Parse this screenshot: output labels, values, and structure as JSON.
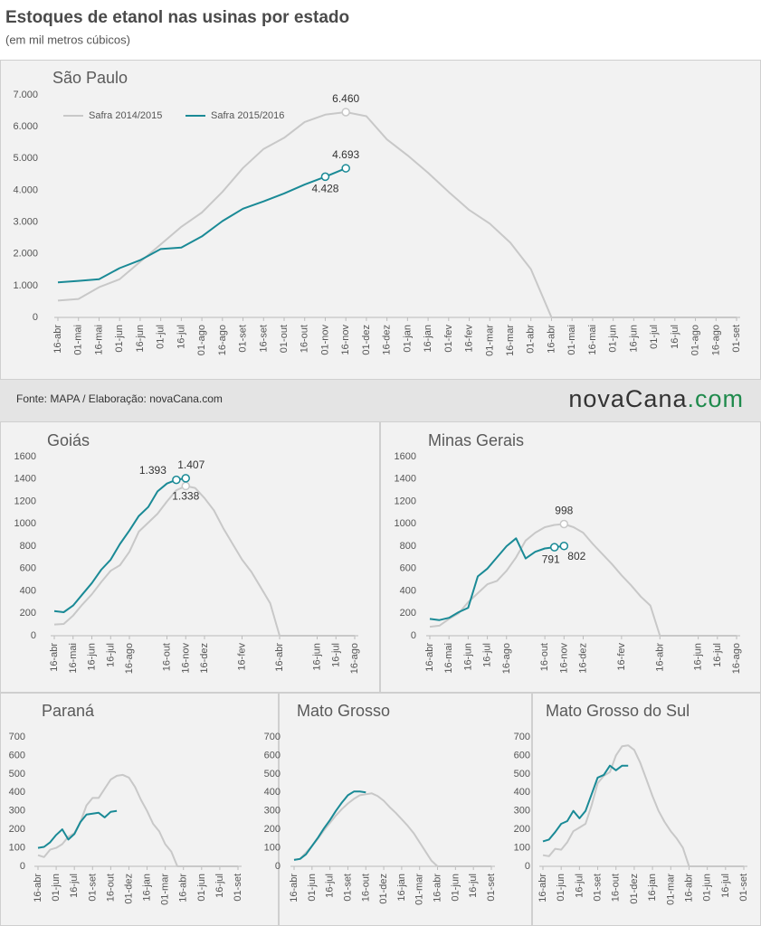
{
  "title": "Estoques de etanol nas usinas por estado",
  "subtitle": "(em mil metros cúbicos)",
  "source": "Fonte: MAPA / Elaboração: novaCana.com",
  "logo": [
    "novaCana",
    ".com"
  ],
  "chart_data": [
    {
      "type": "line",
      "title": "São Paulo",
      "categories": [
        "16-abr",
        "01-mai",
        "16-mai",
        "01-jun",
        "16-jun",
        "01-jul",
        "16-jul",
        "01-ago",
        "16-ago",
        "01-set",
        "16-set",
        "01-out",
        "16-out",
        "01-nov",
        "16-nov",
        "01-dez",
        "16-dez",
        "01-jan",
        "16-jan",
        "01-fev",
        "16-fev",
        "01-mar",
        "16-mar",
        "01-abr",
        "16-abr",
        "01-mai",
        "16-mai",
        "01-jun",
        "16-jun",
        "01-jul",
        "16-jul",
        "01-ago",
        "16-ago",
        "01-set"
      ],
      "series": [
        {
          "name": "Safra 2014/2015",
          "color": "#c8c8c8",
          "values": [
            530,
            580,
            950,
            1200,
            1750,
            2300,
            2850,
            3300,
            3950,
            4700,
            5300,
            5650,
            6150,
            6380,
            6460,
            6330,
            5600,
            5100,
            4550,
            3950,
            3380,
            2950,
            2350,
            1520,
            0,
            0,
            0,
            0,
            0,
            0,
            0,
            0,
            0,
            0
          ],
          "value_labels": [
            null,
            null,
            null,
            null,
            null,
            null,
            null,
            null,
            null,
            null,
            null,
            null,
            null,
            null,
            "6.460",
            null,
            null,
            null,
            null,
            null,
            null,
            null,
            null,
            null,
            null,
            null,
            null,
            null,
            null,
            null,
            null,
            null,
            null,
            null
          ]
        },
        {
          "name": "Safra 2015/2016",
          "color": "#1a8a96",
          "values": [
            1100,
            1150,
            1200,
            1550,
            1800,
            2150,
            2200,
            2550,
            3030,
            3420,
            3650,
            3900,
            4180,
            4428,
            4693,
            null,
            null,
            null,
            null,
            null,
            null,
            null,
            null,
            null,
            null,
            null,
            null,
            null,
            null,
            null,
            null,
            null,
            null,
            null
          ],
          "value_labels": [
            null,
            null,
            null,
            null,
            null,
            null,
            null,
            null,
            null,
            null,
            null,
            null,
            null,
            "4.428",
            "4.693",
            null,
            null,
            null,
            null,
            null,
            null,
            null,
            null,
            null,
            null,
            null,
            null,
            null,
            null,
            null,
            null,
            null,
            null,
            null
          ]
        }
      ],
      "ylim": [
        0,
        7000
      ],
      "yticks": [
        0,
        {
          "value": 1000,
          "label": "1.000"
        },
        {
          "value": 2000,
          "label": "2.000"
        },
        {
          "value": 3000,
          "label": "3.000"
        },
        {
          "value": 4000,
          "label": "4.000"
        },
        {
          "value": 5000,
          "label": "5.000"
        },
        {
          "value": 6000,
          "label": "6.000"
        },
        {
          "value": 7000,
          "label": "7.000"
        }
      ],
      "grid": false,
      "legend": "upper left"
    },
    {
      "type": "line",
      "title": "Goiás",
      "categories": [
        "16-abr",
        null,
        "16-mai",
        null,
        "16-jun",
        null,
        "16-jul",
        null,
        "16-ago",
        null,
        null,
        null,
        "16-out",
        null,
        "16-nov",
        null,
        "16-dez",
        null,
        null,
        null,
        "16-fev",
        null,
        null,
        null,
        "16-abr",
        null,
        null,
        null,
        "16-jun",
        null,
        "16-jul",
        null,
        "16-ago"
      ],
      "series": [
        {
          "color": "#c8c8c8",
          "values": [
            100,
            105,
            180,
            280,
            370,
            480,
            580,
            630,
            750,
            930,
            1010,
            1090,
            1200,
            1300,
            1338,
            1320,
            1230,
            1120,
            960,
            820,
            680,
            570,
            430,
            290,
            0,
            0,
            0,
            0,
            0,
            0,
            0,
            0,
            0
          ],
          "value_labels": [
            null,
            null,
            null,
            null,
            null,
            null,
            null,
            null,
            null,
            null,
            null,
            null,
            null,
            null,
            "1.338",
            null,
            null,
            null,
            null,
            null,
            null,
            null,
            null,
            null,
            null,
            null,
            null,
            null,
            null,
            null,
            null,
            null,
            null
          ]
        },
        {
          "color": "#1a8a96",
          "values": [
            220,
            210,
            270,
            370,
            470,
            590,
            680,
            820,
            940,
            1070,
            1150,
            1290,
            1360,
            1393,
            1407,
            null,
            null,
            null,
            null,
            null,
            null,
            null,
            null,
            null,
            null,
            null,
            null,
            null,
            null,
            null,
            null,
            null,
            null
          ],
          "value_labels": [
            null,
            null,
            null,
            null,
            null,
            null,
            null,
            null,
            null,
            null,
            null,
            null,
            null,
            "1.393",
            "1.407",
            null,
            null,
            null,
            null,
            null,
            null,
            null,
            null,
            null,
            null,
            null,
            null,
            null,
            null,
            null,
            null,
            null,
            null
          ]
        }
      ],
      "ylim": [
        0,
        1600
      ],
      "yticks": [
        0,
        200,
        400,
        600,
        800,
        1000,
        1200,
        1400,
        1600
      ],
      "grid": false
    },
    {
      "type": "line",
      "title": "Minas Gerais",
      "categories": [
        "16-abr",
        null,
        "16-mai",
        null,
        "16-jun",
        null,
        "16-jul",
        null,
        "16-ago",
        null,
        null,
        null,
        "16-out",
        null,
        "16-nov",
        null,
        "16-dez",
        null,
        null,
        null,
        "16-fev",
        null,
        null,
        null,
        "16-abr",
        null,
        null,
        null,
        "16-jun",
        null,
        "16-jul",
        null,
        "16-ago"
      ],
      "series": [
        {
          "color": "#c8c8c8",
          "values": [
            80,
            90,
            150,
            200,
            300,
            380,
            460,
            490,
            580,
            700,
            850,
            920,
            970,
            990,
            998,
            970,
            920,
            820,
            730,
            640,
            540,
            450,
            350,
            270,
            0,
            0,
            0,
            0,
            0,
            0,
            0,
            0,
            0
          ],
          "value_labels": [
            null,
            null,
            null,
            null,
            null,
            null,
            null,
            null,
            null,
            null,
            null,
            null,
            null,
            null,
            "998",
            null,
            null,
            null,
            null,
            null,
            null,
            null,
            null,
            null,
            null,
            null,
            null,
            null,
            null,
            null,
            null,
            null,
            null
          ]
        },
        {
          "color": "#1a8a96",
          "values": [
            150,
            140,
            160,
            210,
            250,
            530,
            600,
            700,
            800,
            870,
            690,
            750,
            780,
            791,
            802,
            null,
            null,
            null,
            null,
            null,
            null,
            null,
            null,
            null,
            null,
            null,
            null,
            null,
            null,
            null,
            null,
            null,
            null
          ],
          "value_labels": [
            null,
            null,
            null,
            null,
            null,
            null,
            null,
            null,
            null,
            null,
            null,
            null,
            null,
            "791",
            "802",
            null,
            null,
            null,
            null,
            null,
            null,
            null,
            null,
            null,
            null,
            null,
            null,
            null,
            null,
            null,
            null,
            null,
            null
          ]
        }
      ],
      "ylim": [
        0,
        1600
      ],
      "yticks": [
        0,
        200,
        400,
        600,
        800,
        1000,
        1200,
        1400,
        1600
      ],
      "grid": false
    },
    {
      "type": "line",
      "title": "Paraná",
      "categories": [
        "16-abr",
        null,
        null,
        "01-jun",
        null,
        null,
        "16-jul",
        null,
        null,
        "01-set",
        null,
        null,
        "16-out",
        null,
        null,
        "01-dez",
        null,
        null,
        "16-jan",
        null,
        null,
        "01-mar",
        null,
        null,
        "16-abr",
        null,
        null,
        "01-jun",
        null,
        null,
        "16-jul",
        null,
        null,
        "01-set"
      ],
      "series": [
        {
          "color": "#c8c8c8",
          "values": [
            60,
            50,
            90,
            100,
            120,
            160,
            180,
            240,
            330,
            370,
            370,
            420,
            470,
            490,
            495,
            480,
            430,
            360,
            300,
            230,
            190,
            120,
            80,
            0,
            0,
            0,
            0,
            0,
            0,
            0,
            0,
            0,
            0,
            0
          ]
        },
        {
          "color": "#1a8a96",
          "values": [
            100,
            105,
            130,
            170,
            200,
            145,
            175,
            240,
            280,
            285,
            290,
            265,
            295,
            300,
            null,
            null,
            null,
            null,
            null,
            null,
            null,
            null,
            null,
            null,
            null,
            null,
            null,
            null,
            null,
            null,
            null,
            null,
            null,
            null
          ]
        }
      ],
      "ylim": [
        0,
        700
      ],
      "yticks": [
        0,
        100,
        200,
        300,
        400,
        500,
        600,
        700
      ],
      "grid": false
    },
    {
      "type": "line",
      "title": "Mato Grosso",
      "categories": [
        "16-abr",
        null,
        null,
        "01-jun",
        null,
        null,
        "16-jul",
        null,
        null,
        "01-set",
        null,
        null,
        "16-out",
        null,
        null,
        "01-dez",
        null,
        null,
        "16-jan",
        null,
        null,
        "01-mar",
        null,
        null,
        "16-abr",
        null,
        null,
        "01-jun",
        null,
        null,
        "16-jul",
        null,
        null,
        "01-set"
      ],
      "series": [
        {
          "color": "#c8c8c8",
          "values": [
            35,
            40,
            75,
            110,
            150,
            195,
            235,
            275,
            310,
            340,
            365,
            385,
            390,
            395,
            380,
            355,
            320,
            290,
            255,
            220,
            180,
            130,
            80,
            30,
            0,
            0,
            0,
            0,
            0,
            0,
            0,
            0,
            0,
            0
          ]
        },
        {
          "color": "#1a8a96",
          "values": [
            35,
            40,
            65,
            110,
            155,
            205,
            250,
            300,
            345,
            385,
            405,
            405,
            400,
            null,
            null,
            null,
            null,
            null,
            null,
            null,
            null,
            null,
            null,
            null,
            null,
            null,
            null,
            null,
            null,
            null,
            null,
            null,
            null,
            null
          ]
        }
      ],
      "ylim": [
        0,
        700
      ],
      "yticks": [
        0,
        100,
        200,
        300,
        400,
        500,
        600,
        700
      ],
      "grid": false
    },
    {
      "type": "line",
      "title": "Mato Grosso do Sul",
      "categories": [
        "16-abr",
        null,
        null,
        "01-jun",
        null,
        null,
        "16-jul",
        null,
        null,
        "01-set",
        null,
        null,
        "16-out",
        null,
        null,
        "01-dez",
        null,
        null,
        "16-jan",
        null,
        null,
        "01-mar",
        null,
        null,
        "16-abr",
        null,
        null,
        "01-jun",
        null,
        null,
        "16-jul",
        null,
        null,
        "01-set"
      ],
      "series": [
        {
          "color": "#c8c8c8",
          "values": [
            60,
            55,
            95,
            90,
            130,
            190,
            210,
            230,
            330,
            450,
            490,
            510,
            600,
            650,
            655,
            630,
            560,
            470,
            380,
            300,
            240,
            190,
            150,
            100,
            0,
            0,
            0,
            0,
            0,
            0,
            0,
            0,
            0,
            0
          ]
        },
        {
          "color": "#1a8a96",
          "values": [
            135,
            145,
            185,
            230,
            245,
            300,
            260,
            300,
            390,
            480,
            495,
            545,
            520,
            545,
            545,
            null,
            null,
            null,
            null,
            null,
            null,
            null,
            null,
            null,
            null,
            null,
            null,
            null,
            null,
            null,
            null,
            null,
            null,
            null
          ]
        }
      ],
      "ylim": [
        0,
        700
      ],
      "yticks": [
        0,
        100,
        200,
        300,
        400,
        500,
        600,
        700
      ],
      "grid": false
    }
  ]
}
